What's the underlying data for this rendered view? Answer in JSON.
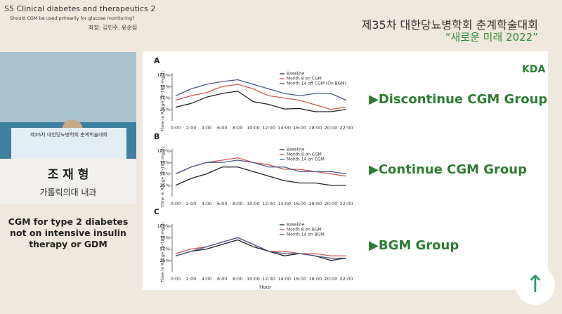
{
  "header": {
    "session": "S5 Clinical diabetes and therapeutics 2",
    "question": "Should CGM be used primarily for glucose monitoring?",
    "chairs": "좌장: 김인주, 유순집",
    "event": "제35차 대한당뇨병학회 춘계학술대회",
    "slogan": "“새로운 미래 2022”"
  },
  "speaker": {
    "podium": "제35차 대한당뇨병학회 춘계학술대회",
    "name": "조 재 형",
    "affiliation": "가톨릭의대 내과",
    "talk_title": "CGM for type 2 diabetes not on intensive insulin therapy or GDM"
  },
  "slide": {
    "groups": [
      "▶Discontinue CGM Group",
      "▶Continue CGM Group",
      "▶BGM Group"
    ],
    "logo": "KDA"
  },
  "chart_data": [
    {
      "type": "line",
      "panel": "A",
      "ylabel": "Time in Range 70-180 mg/dL",
      "categories": [
        "0:00",
        "2:00",
        "4:00",
        "6:00",
        "8:00",
        "10:00",
        "12:00",
        "14:00",
        "16:00",
        "18:00",
        "20:00",
        "22:00"
      ],
      "ylim": [
        0,
        100
      ],
      "yticks": [
        {
          "value": 25,
          "label": "25%"
        },
        {
          "value": 50,
          "label": "50%"
        },
        {
          "value": 75,
          "label": "75%"
        },
        {
          "value": 100,
          "label": "100%"
        }
      ],
      "series": [
        {
          "name": "Baseline",
          "color": "#222222",
          "values": [
            30,
            38,
            52,
            60,
            65,
            42,
            36,
            26,
            27,
            20,
            20,
            25
          ]
        },
        {
          "name": "Month 8 on CGM",
          "color": "#d0584f",
          "values": [
            45,
            55,
            62,
            75,
            80,
            70,
            55,
            50,
            45,
            35,
            25,
            30
          ]
        },
        {
          "name": "Month 14 off CGM (On BGM)",
          "color": "#4a5a8c",
          "values": [
            55,
            70,
            80,
            86,
            90,
            80,
            70,
            60,
            55,
            60,
            60,
            45
          ]
        }
      ]
    },
    {
      "type": "line",
      "panel": "B",
      "ylabel": "Time in Range 70-180 mg/dL",
      "categories": [
        "0:00",
        "2:00",
        "4:00",
        "6:00",
        "8:00",
        "10:00",
        "12:00",
        "14:00",
        "16:00",
        "18:00",
        "20:00",
        "22:00"
      ],
      "ylim": [
        0,
        100
      ],
      "yticks": [
        {
          "value": 25,
          "label": "25%"
        },
        {
          "value": 50,
          "label": "50%"
        },
        {
          "value": 75,
          "label": "75%"
        },
        {
          "value": 100,
          "label": "100%"
        }
      ],
      "series": [
        {
          "name": "Baseline",
          "color": "#222222",
          "values": [
            25,
            40,
            50,
            65,
            65,
            55,
            45,
            35,
            30,
            30,
            25,
            25
          ]
        },
        {
          "name": "Month 8 on CGM",
          "color": "#d0584f",
          "values": [
            50,
            65,
            75,
            80,
            85,
            75,
            70,
            60,
            60,
            55,
            50,
            45
          ]
        },
        {
          "name": "Month 14 on CGM",
          "color": "#4a5a8c",
          "values": [
            50,
            65,
            75,
            75,
            80,
            75,
            65,
            65,
            55,
            55,
            55,
            50
          ]
        }
      ]
    },
    {
      "type": "line",
      "panel": "C",
      "ylabel": "Time in Range 70-180 mg/dL",
      "xlabel": "Hour",
      "categories": [
        "0:00",
        "2:00",
        "4:00",
        "6:00",
        "8:00",
        "10:00",
        "12:00",
        "14:00",
        "16:00",
        "18:00",
        "20:00",
        "22:00"
      ],
      "ylim": [
        0,
        100
      ],
      "yticks": [
        {
          "value": 25,
          "label": "25%"
        },
        {
          "value": 50,
          "label": "50%"
        },
        {
          "value": 75,
          "label": "75%"
        },
        {
          "value": 100,
          "label": "100%"
        }
      ],
      "series": [
        {
          "name": "Baseline",
          "color": "#222222",
          "values": [
            35,
            45,
            50,
            60,
            70,
            55,
            45,
            35,
            40,
            35,
            25,
            30
          ]
        },
        {
          "name": "Month 8 on BGM",
          "color": "#d0584f",
          "values": [
            40,
            50,
            55,
            65,
            75,
            60,
            45,
            45,
            40,
            40,
            35,
            35
          ]
        },
        {
          "name": "Month 14 on BGM",
          "color": "#4a5a8c",
          "values": [
            35,
            45,
            55,
            65,
            75,
            60,
            45,
            40,
            40,
            35,
            30,
            30
          ]
        }
      ]
    }
  ]
}
